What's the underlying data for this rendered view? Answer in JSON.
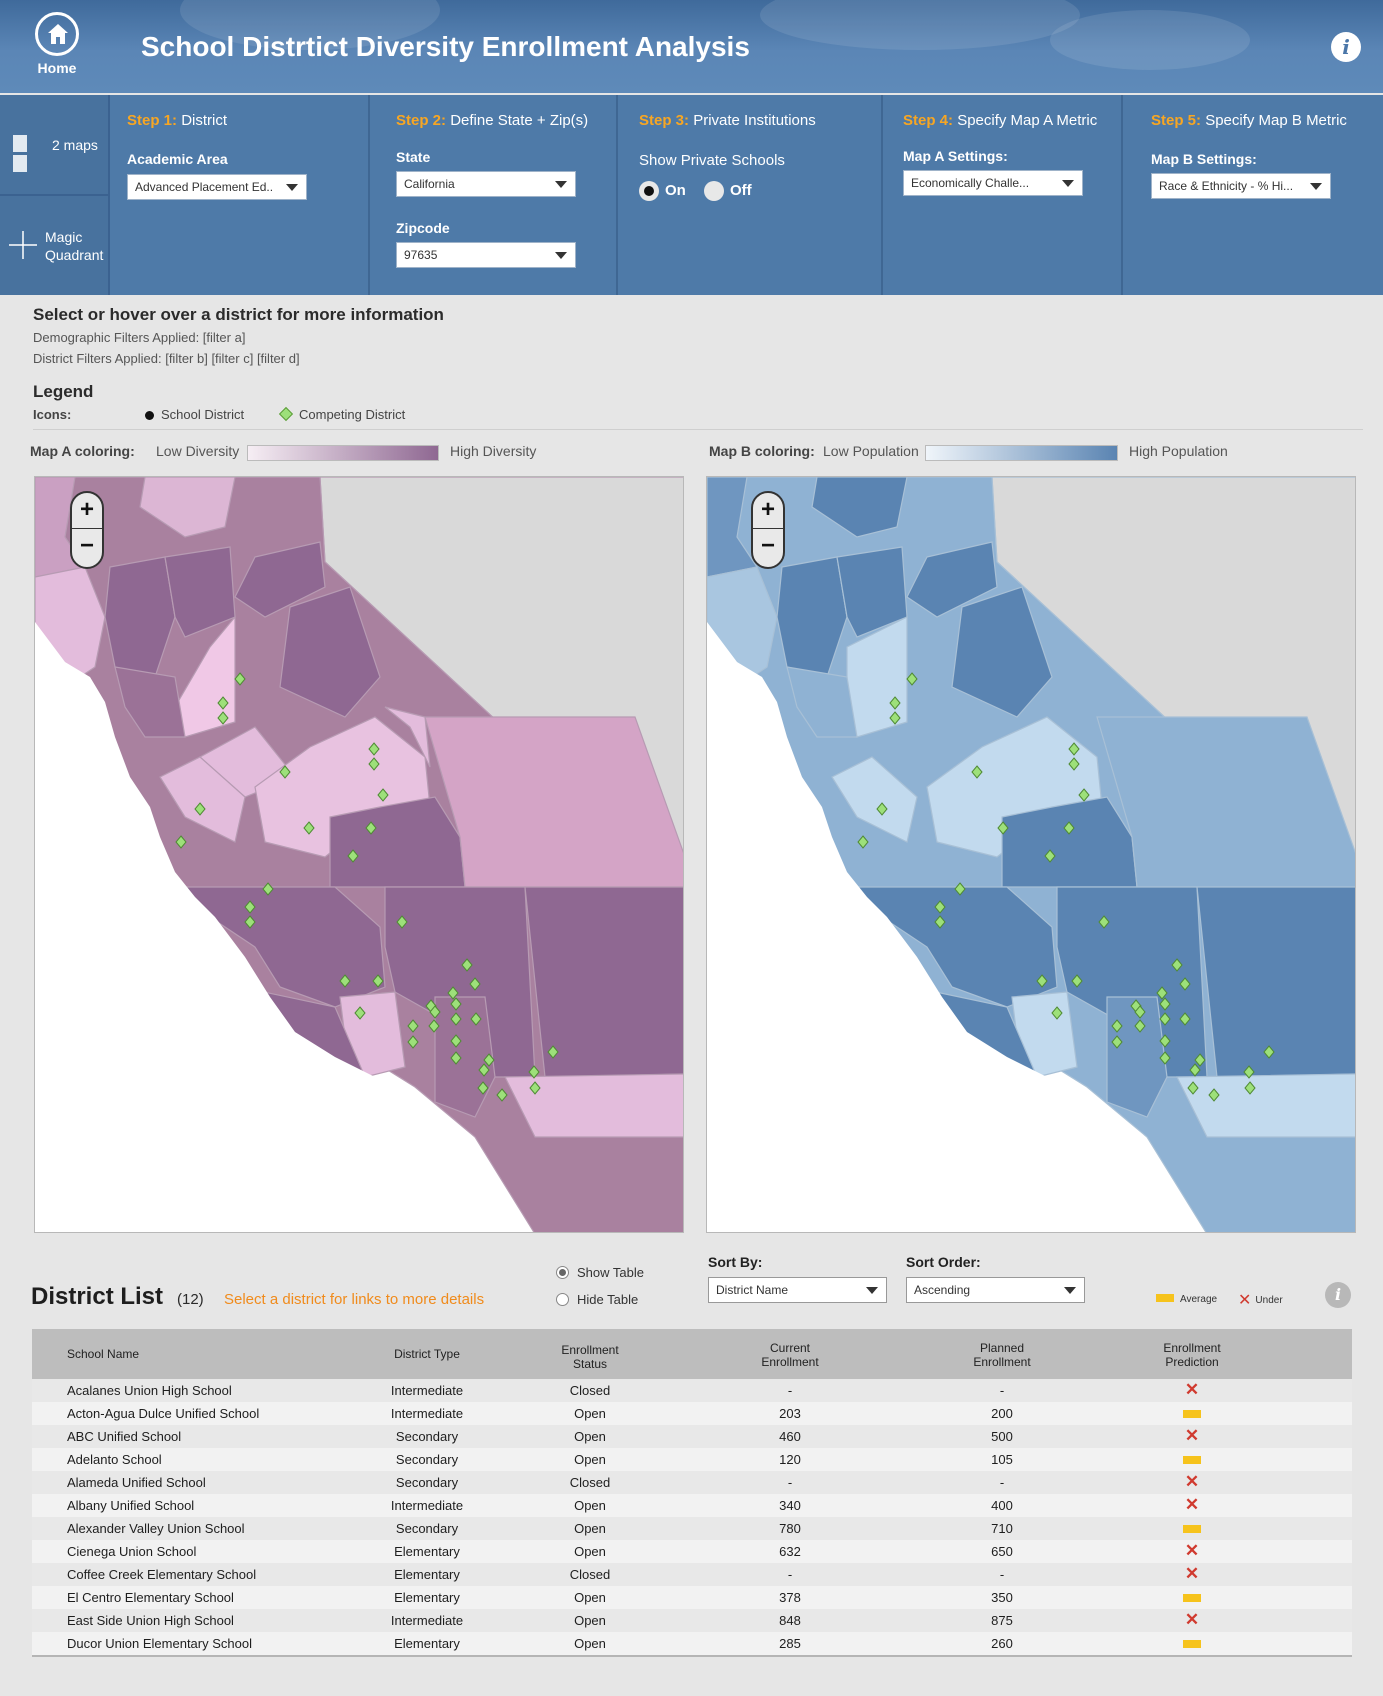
{
  "header": {
    "home_label": "Home",
    "title": "School Distrtict Diversity Enrollment Analysis",
    "info_icon": "i"
  },
  "sidebar": {
    "maps_label": "2 maps",
    "quadrant_line1": "Magic",
    "quadrant_line2": "Quadrant"
  },
  "steps": {
    "s1": {
      "prefix": "Step 1:",
      "title": "District",
      "label": "Academic Area",
      "value": "Advanced Placement Ed.."
    },
    "s2": {
      "prefix": "Step 2:",
      "title": "Define State + Zip(s)",
      "state_label": "State",
      "state_value": "California",
      "zip_label": "Zipcode",
      "zip_value": "97635"
    },
    "s3": {
      "prefix": "Step 3:",
      "title": "Private Institutions",
      "label": "Show Private Schools",
      "on": "On",
      "off": "Off"
    },
    "s4": {
      "prefix": "Step 4:",
      "title": "Specify Map A Metric",
      "label": "Map A Settings:",
      "value": "Economically Challe..."
    },
    "s5": {
      "prefix": "Step 5:",
      "title": "Specify Map B Metric",
      "label": "Map B Settings:",
      "value": "Race & Ethnicity - % Hi..."
    }
  },
  "info": {
    "heading": "Select or hover over a district for more information",
    "demographic": "Demographic Filters Applied: [filter a]",
    "district": "District Filters Applied: [filter b] [filter c] [filter d]"
  },
  "legend": {
    "heading": "Legend",
    "icons_label": "Icons:",
    "school_district": "School District",
    "competing_district": "Competing District",
    "map_a_label": "Map A coloring:",
    "map_a_low": "Low Diversity",
    "map_a_high": "High Diversity",
    "map_b_label": "Map B coloring:",
    "map_b_low": "Low Population",
    "map_b_high": "High Population",
    "colors": {
      "map_a_low": "#f2e6ef",
      "map_a_high": "#8f6892",
      "map_b_low": "#eaf2f8",
      "map_b_high": "#5a84b2",
      "competing": "#9de07a"
    }
  },
  "maps": {
    "zoom_in": "+",
    "zoom_out": "−"
  },
  "district_list": {
    "title": "District List",
    "count": "(12)",
    "hint": "Select a district for links to more details",
    "show_table": "Show Table",
    "hide_table": "Hide Table",
    "sort_by_label": "Sort By:",
    "sort_by_value": "District Name",
    "sort_order_label": "Sort Order:",
    "sort_order_value": "Ascending",
    "key_average": "Average",
    "key_under": "Under",
    "columns": {
      "name": "School Name",
      "type": "District Type",
      "status_1": "Enrollment",
      "status_2": "Status",
      "current_1": "Current",
      "current_2": "Enrollment",
      "planned_1": "Planned",
      "planned_2": "Enrollment",
      "pred_1": "Enrollment",
      "pred_2": "Prediction"
    },
    "rows": [
      {
        "name": "Acalanes Union High School",
        "type": "Intermediate",
        "status": "Closed",
        "current": "-",
        "planned": "-",
        "prediction": "under"
      },
      {
        "name": "Acton-Agua Dulce Unified School",
        "type": "Intermediate",
        "status": "Open",
        "current": "203",
        "planned": "200",
        "prediction": "average"
      },
      {
        "name": "ABC Unified School",
        "type": "Secondary",
        "status": "Open",
        "current": "460",
        "planned": "500",
        "prediction": "under"
      },
      {
        "name": "Adelanto School",
        "type": "Secondary",
        "status": "Open",
        "current": "120",
        "planned": "105",
        "prediction": "average"
      },
      {
        "name": "Alameda Unified School",
        "type": "Secondary",
        "status": "Closed",
        "current": "-",
        "planned": "-",
        "prediction": "under"
      },
      {
        "name": "Albany Unified School",
        "type": "Intermediate",
        "status": "Open",
        "current": "340",
        "planned": "400",
        "prediction": "under"
      },
      {
        "name": "Alexander Valley Union School",
        "type": "Secondary",
        "status": "Open",
        "current": "780",
        "planned": "710",
        "prediction": "average"
      },
      {
        "name": "Cienega Union School",
        "type": "Elementary",
        "status": "Open",
        "current": "632",
        "planned": "650",
        "prediction": "under"
      },
      {
        "name": "Coffee Creek Elementary School",
        "type": "Elementary",
        "status": "Closed",
        "current": "-",
        "planned": "-",
        "prediction": "under"
      },
      {
        "name": "El Centro Elementary School",
        "type": "Elementary",
        "status": "Open",
        "current": "378",
        "planned": "350",
        "prediction": "average"
      },
      {
        "name": "East Side Union High School",
        "type": "Intermediate",
        "status": "Open",
        "current": "848",
        "planned": "875",
        "prediction": "under"
      },
      {
        "name": "Ducor Union Elementary School",
        "type": "Elementary",
        "status": "Open",
        "current": "285",
        "planned": "260",
        "prediction": "average"
      }
    ]
  }
}
